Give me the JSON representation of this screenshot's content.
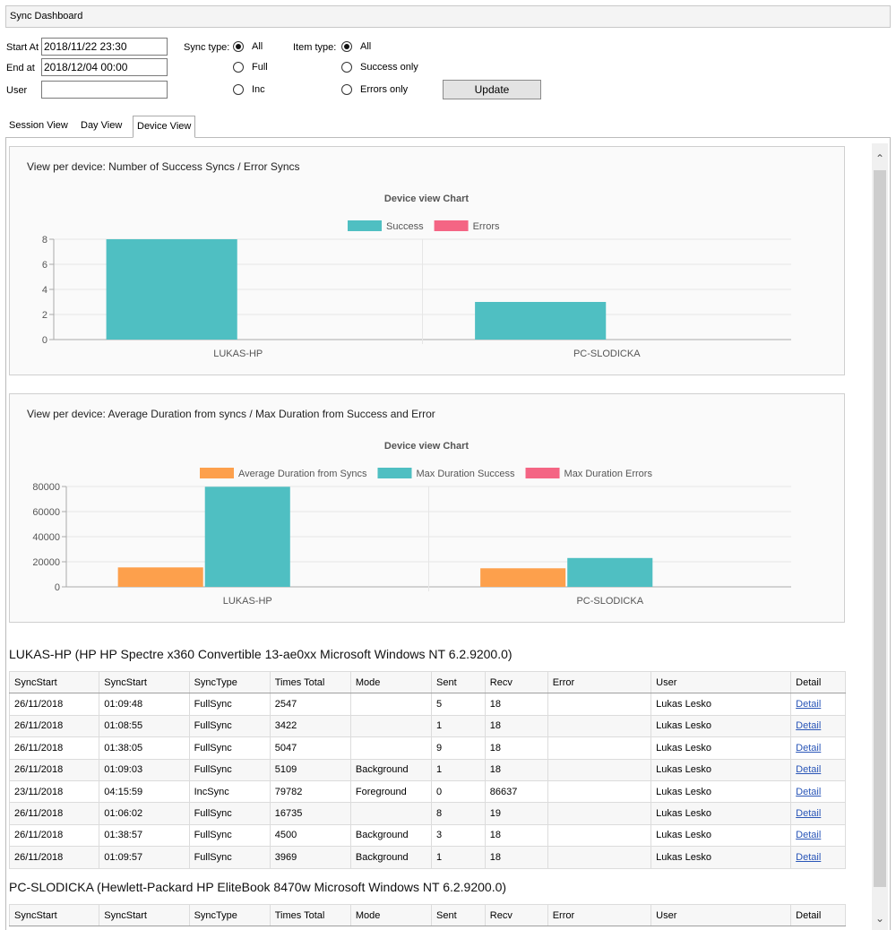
{
  "window": {
    "title": "Sync Dashboard"
  },
  "filters": {
    "start_label": "Start At",
    "start_value": "2018/11/22 23:30",
    "end_label": "End at",
    "end_value": "2018/12/04 00:00",
    "user_label": "User",
    "user_value": "",
    "sync_type_label": "Sync type:",
    "sync_type_options": [
      "All",
      "Full",
      "Inc"
    ],
    "sync_type_selected": "All",
    "item_type_label": "Item type:",
    "item_type_options": [
      "All",
      "Success only",
      "Errors only"
    ],
    "item_type_selected": "All",
    "update_label": "Update"
  },
  "tabs": [
    {
      "label": "Session View",
      "active": false
    },
    {
      "label": "Day View",
      "active": false
    },
    {
      "label": "Device View",
      "active": true
    }
  ],
  "colors": {
    "success": "#4fbfc2",
    "errors": "#f46584",
    "average": "#fda04c"
  },
  "charts": [
    {
      "panel_title": "View per device: Number of Success Syncs / Error Syncs",
      "chart_data": {
        "type": "bar",
        "title": "Device view Chart",
        "categories": [
          "LUKAS-HP",
          "PC-SLODICKA"
        ],
        "series": [
          {
            "name": "Success",
            "values": [
              8,
              3
            ]
          },
          {
            "name": "Errors",
            "values": [
              0,
              0
            ]
          }
        ],
        "yticks": [
          "0",
          "2",
          "4",
          "6",
          "8"
        ],
        "ylim": [
          0,
          8
        ],
        "legend": "top",
        "grid": true
      }
    },
    {
      "panel_title": "View per device: Average Duration from syncs / Max Duration from Success and Error",
      "chart_data": {
        "type": "bar",
        "title": "Device view Chart",
        "categories": [
          "LUKAS-HP",
          "PC-SLODICKA"
        ],
        "series": [
          {
            "name": "Average Duration from Syncs",
            "values": [
              15500,
              14800
            ]
          },
          {
            "name": "Max Duration Success",
            "values": [
              79782,
              23000
            ]
          },
          {
            "name": "Max Duration Errors",
            "values": [
              0,
              0
            ]
          }
        ],
        "yticks": [
          "0",
          "20000",
          "40000",
          "60000",
          "80000"
        ],
        "ylim": [
          0,
          80000
        ],
        "legend": "top",
        "grid": true
      }
    }
  ],
  "table_headers": [
    "SyncStart",
    "SyncStart",
    "SyncType",
    "Times Total",
    "Mode",
    "Sent",
    "Recv",
    "Error",
    "User",
    "Detail"
  ],
  "devices": [
    {
      "title": "LUKAS-HP (HP HP Spectre x360 Convertible 13-ae0xx Microsoft Windows NT 6.2.9200.0)",
      "rows": [
        [
          "26/11/2018",
          "01:09:48",
          "FullSync",
          "2547",
          "",
          "5",
          "18",
          "",
          "Lukas Lesko",
          "Detail"
        ],
        [
          "26/11/2018",
          "01:08:55",
          "FullSync",
          "3422",
          "",
          "1",
          "18",
          "",
          "Lukas Lesko",
          "Detail"
        ],
        [
          "26/11/2018",
          "01:38:05",
          "FullSync",
          "5047",
          "",
          "9",
          "18",
          "",
          "Lukas Lesko",
          "Detail"
        ],
        [
          "26/11/2018",
          "01:09:03",
          "FullSync",
          "5109",
          "Background",
          "1",
          "18",
          "",
          "Lukas Lesko",
          "Detail"
        ],
        [
          "23/11/2018",
          "04:15:59",
          "IncSync",
          "79782",
          "Foreground",
          "0",
          "86637",
          "",
          "Lukas Lesko",
          "Detail"
        ],
        [
          "26/11/2018",
          "01:06:02",
          "FullSync",
          "16735",
          "",
          "8",
          "19",
          "",
          "Lukas Lesko",
          "Detail"
        ],
        [
          "26/11/2018",
          "01:38:57",
          "FullSync",
          "4500",
          "Background",
          "3",
          "18",
          "",
          "Lukas Lesko",
          "Detail"
        ],
        [
          "26/11/2018",
          "01:09:57",
          "FullSync",
          "3969",
          "Background",
          "1",
          "18",
          "",
          "Lukas Lesko",
          "Detail"
        ]
      ]
    },
    {
      "title": "PC-SLODICKA (Hewlett-Packard HP EliteBook 8470w Microsoft Windows NT 6.2.9200.0)",
      "rows": []
    }
  ]
}
